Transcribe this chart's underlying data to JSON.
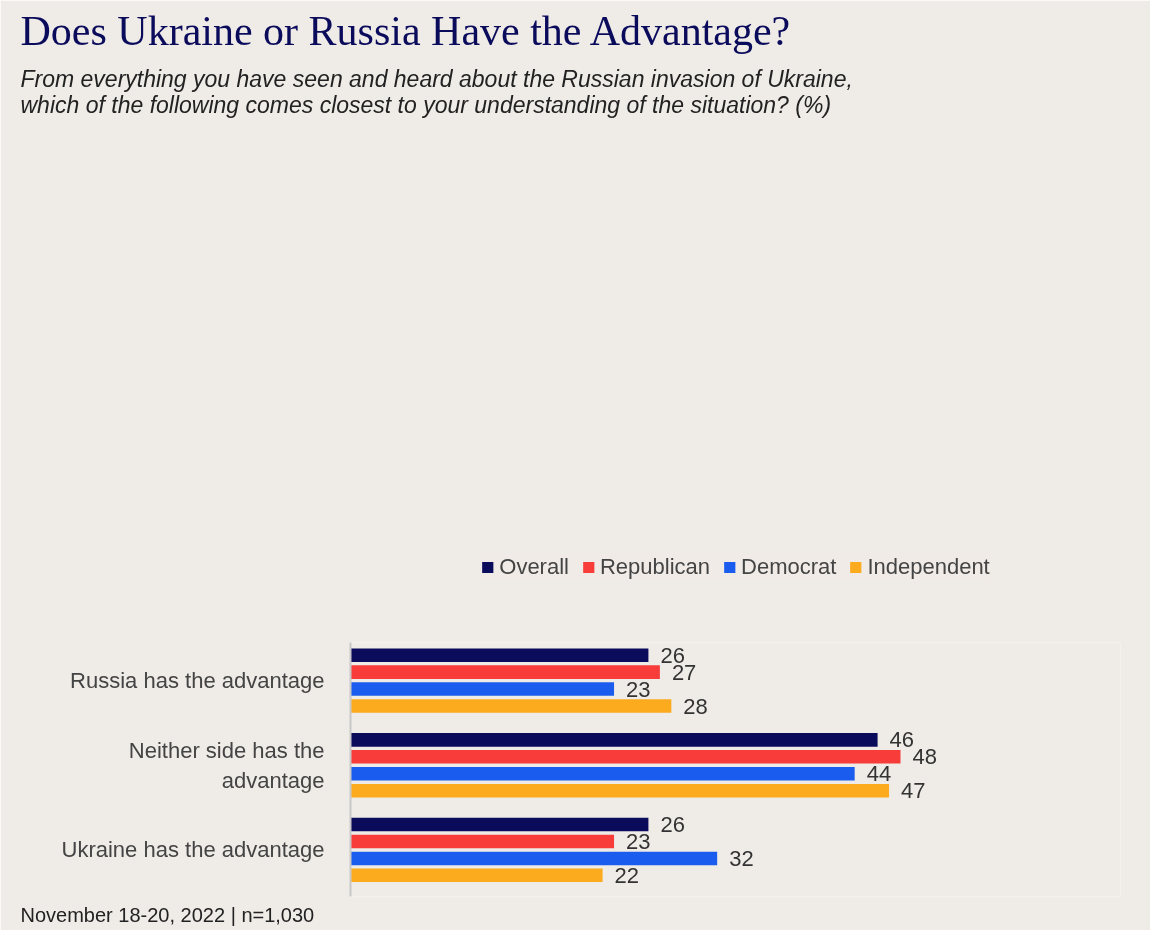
{
  "chart_data": {
    "type": "bar",
    "orientation": "horizontal",
    "title": "Does Ukraine or Russia Have the Advantage?",
    "subtitle": "From everything you have seen and heard about the Russian invasion of Ukraine, which of the following comes closest to your understanding of the situation? (%)",
    "categories": [
      "Russia has the advantage",
      "Neither side has the advantage",
      "Ukraine has the advantage"
    ],
    "series": [
      {
        "name": "Overall",
        "color": "#0b0b5c",
        "values": [
          26,
          46,
          26
        ]
      },
      {
        "name": "Republican",
        "color": "#f83c3a",
        "values": [
          27,
          48,
          23
        ]
      },
      {
        "name": "Democrat",
        "color": "#1a5ced",
        "values": [
          23,
          44,
          32
        ]
      },
      {
        "name": "Independent",
        "color": "#fbab1d",
        "values": [
          28,
          47,
          22
        ]
      }
    ],
    "data_labels": true,
    "legend": "top",
    "grid": false,
    "annotations": [
      "November 18-20, 2022 | n=1,030"
    ]
  }
}
